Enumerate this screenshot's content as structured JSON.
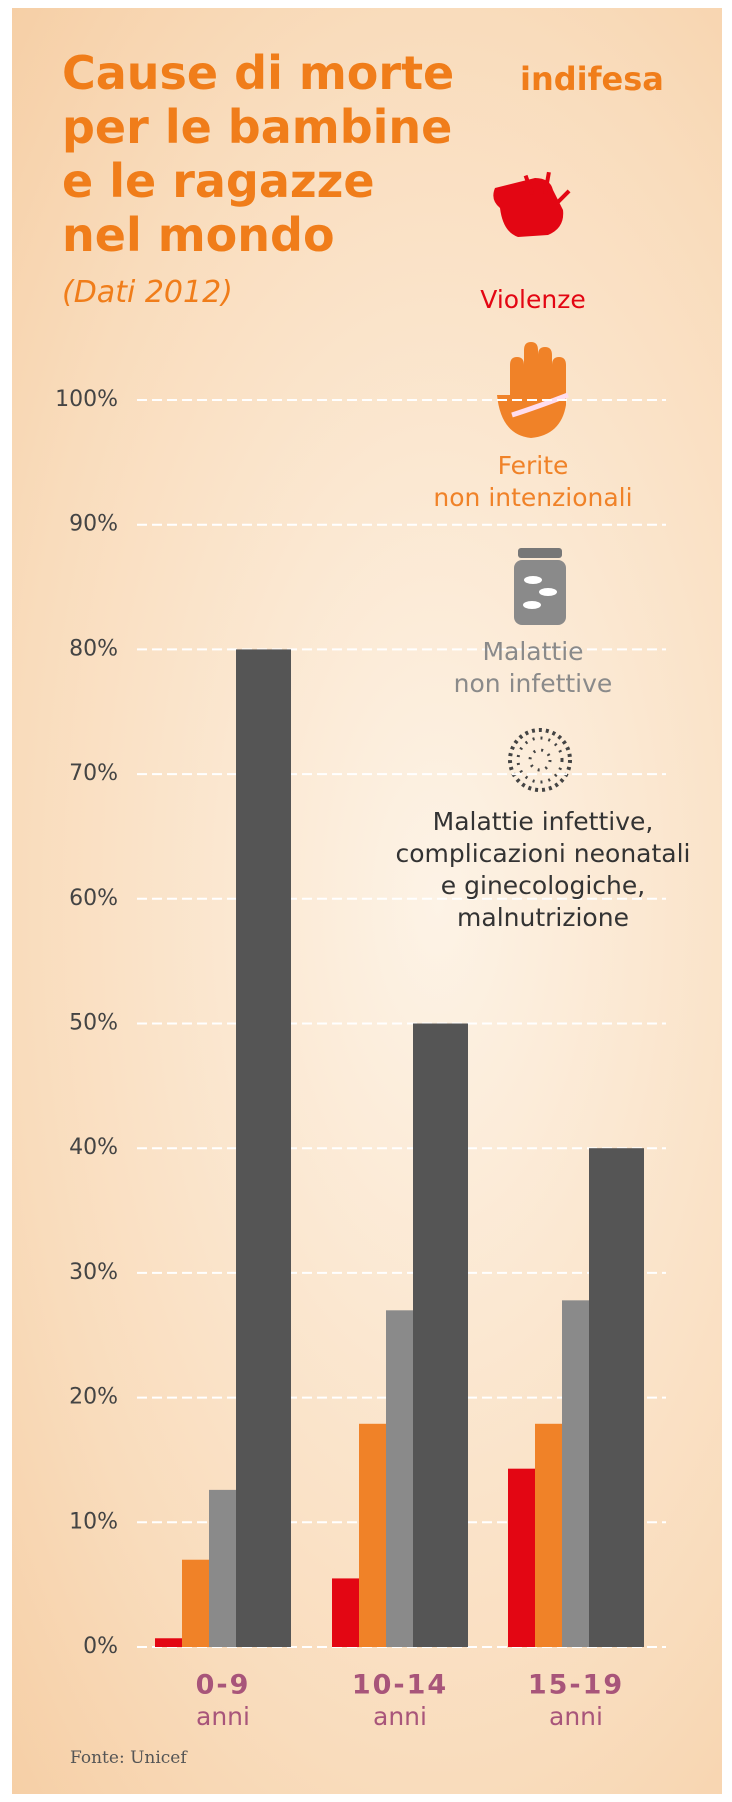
{
  "chart_data": {
    "type": "bar",
    "title": "Cause di morte\nper le bambine\ne le ragazze\nnel mondo",
    "subtitle": "(Dati 2012)",
    "logo": "indifesa",
    "source": "Fonte: Unicef",
    "categories": [
      "0-9",
      "10-14",
      "15-19"
    ],
    "category_unit": "anni",
    "series": [
      {
        "name": "Violenze",
        "color": "#e30613",
        "values": [
          0.7,
          5.5,
          14.3
        ]
      },
      {
        "name": "Ferite\nnon intenzionali",
        "color": "#f08228",
        "values": [
          7,
          17.9,
          17.9
        ]
      },
      {
        "name": "Malattie\nnon infettive",
        "color": "#8a8a8a",
        "values": [
          12.6,
          27,
          27.8
        ]
      },
      {
        "name": "Malattie infettive,\ncomplicazioni neonatali\ne ginecologiche,\nmalnutrizione",
        "color": "#555555",
        "values": [
          80,
          50,
          40
        ]
      }
    ],
    "ylim": [
      0,
      100
    ],
    "yticks": [
      {
        "value": 0,
        "label": "0%"
      },
      {
        "value": 10,
        "label": "10%"
      },
      {
        "value": 20,
        "label": "20%"
      },
      {
        "value": 30,
        "label": "30%"
      },
      {
        "value": 40,
        "label": "40%"
      },
      {
        "value": 50,
        "label": "50%"
      },
      {
        "value": 60,
        "label": "60%"
      },
      {
        "value": 70,
        "label": "70%"
      },
      {
        "value": 80,
        "label": "80%"
      },
      {
        "value": 90,
        "label": "90%"
      },
      {
        "value": 100,
        "label": "100%"
      }
    ],
    "grid": true
  }
}
